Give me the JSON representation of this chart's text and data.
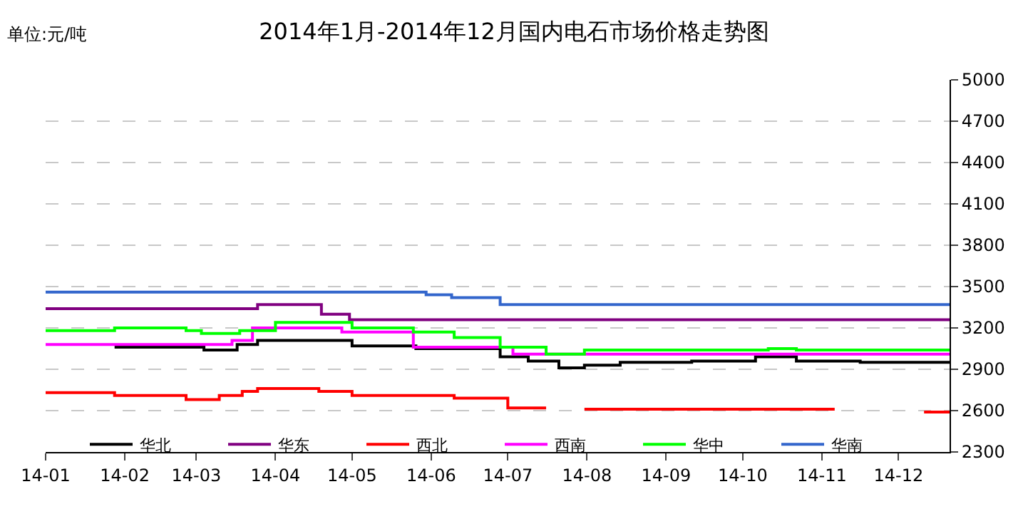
{
  "chart_data": {
    "type": "step",
    "title": "2014年1月-2014年12月国内电石市场价格走势图",
    "annotations": [
      "单位:元/吨"
    ],
    "xlim": [
      "2014-01-01",
      "2014-12-21"
    ],
    "xticks": [
      {
        "value": "2014-01-01",
        "label": "14-01"
      },
      {
        "value": "2014-02-01",
        "label": "14-02"
      },
      {
        "value": "2014-03-01",
        "label": "14-03"
      },
      {
        "value": "2014-04-01",
        "label": "14-04"
      },
      {
        "value": "2014-05-01",
        "label": "14-05"
      },
      {
        "value": "2014-06-01",
        "label": "14-06"
      },
      {
        "value": "2014-07-01",
        "label": "14-07"
      },
      {
        "value": "2014-08-01",
        "label": "14-08"
      },
      {
        "value": "2014-09-01",
        "label": "14-09"
      },
      {
        "value": "2014-10-01",
        "label": "14-10"
      },
      {
        "value": "2014-11-01",
        "label": "14-11"
      },
      {
        "value": "2014-12-01",
        "label": "14-12"
      }
    ],
    "ylim": [
      2300,
      5000
    ],
    "yticks": [
      2300,
      2600,
      2900,
      3200,
      3500,
      3800,
      4100,
      4400,
      4700,
      5000
    ],
    "grid": "y",
    "legend": "bottom",
    "line_style": "solid",
    "marker": "none",
    "series": [
      {
        "name": "华北",
        "color": "#000000",
        "x": [
          "2014-01-28",
          "2014-03-04",
          "2014-03-17",
          "2014-03-25",
          "2014-05-01",
          "2014-05-26",
          "2014-06-28",
          "2014-07-09",
          "2014-07-21",
          "2014-07-31",
          "2014-08-14",
          "2014-09-11",
          "2014-10-06",
          "2014-10-22",
          "2014-11-16",
          "2014-12-21"
        ],
        "values": [
          3060,
          3040,
          3080,
          3110,
          3070,
          3050,
          2990,
          2960,
          2910,
          2930,
          2950,
          2960,
          2990,
          2960,
          2950,
          2950
        ]
      },
      {
        "name": "华东",
        "color": "#800080",
        "x": [
          "2014-01-01",
          "2014-03-25",
          "2014-04-19",
          "2014-04-30",
          "2014-12-21"
        ],
        "values": [
          3340,
          3370,
          3300,
          3260,
          3260
        ]
      },
      {
        "name": "西北",
        "color": "#ff0000",
        "x": [
          "2014-01-01",
          "2014-01-28",
          "2014-02-25",
          "2014-03-10",
          "2014-03-19",
          "2014-03-25",
          "2014-04-18",
          "2014-05-01",
          "2014-06-10",
          "2014-07-01",
          "2014-07-16",
          "2014-07-23",
          "2014-07-31",
          "2014-11-06",
          "2014-11-20",
          "2014-12-11",
          "2014-12-21"
        ],
        "values": [
          2730,
          2710,
          2680,
          2710,
          2740,
          2760,
          2740,
          2710,
          2690,
          2620,
          2620,
          null,
          2610,
          2610,
          null,
          2590,
          2590
        ]
      },
      {
        "name": "西南",
        "color": "#ff00ff",
        "x": [
          "2014-01-01",
          "2014-03-15",
          "2014-03-23",
          "2014-04-27",
          "2014-05-25",
          "2014-07-03",
          "2014-12-21"
        ],
        "values": [
          3080,
          3110,
          3200,
          3170,
          3060,
          3010,
          3010
        ]
      },
      {
        "name": "华中",
        "color": "#00ff00",
        "x": [
          "2014-01-01",
          "2014-01-28",
          "2014-02-25",
          "2014-03-03",
          "2014-03-18",
          "2014-04-01",
          "2014-05-01",
          "2014-05-25",
          "2014-06-10",
          "2014-06-28",
          "2014-07-16",
          "2014-07-31",
          "2014-10-11",
          "2014-10-22",
          "2014-12-21"
        ],
        "values": [
          3180,
          3200,
          3180,
          3160,
          3180,
          3240,
          3200,
          3170,
          3130,
          3060,
          3010,
          3040,
          3050,
          3040,
          3040
        ]
      },
      {
        "name": "华南",
        "color": "#3366cc",
        "x": [
          "2014-01-01",
          "2014-05-30",
          "2014-06-09",
          "2014-06-28",
          "2014-12-21"
        ],
        "values": [
          3460,
          3440,
          3420,
          3370,
          3370
        ]
      }
    ]
  }
}
